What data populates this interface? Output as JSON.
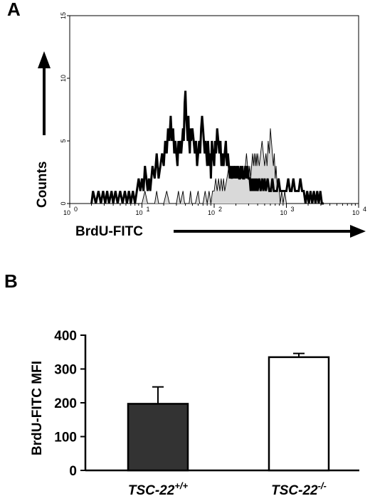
{
  "chart_data": [
    {
      "panel": "A",
      "type": "line",
      "xlabel": "BrdU-FITC",
      "ylabel": "Counts",
      "xscale": "log",
      "xlim": [
        1,
        10000
      ],
      "ylim": [
        0,
        15
      ],
      "xticks": [
        {
          "value": 1,
          "base": "10",
          "exp": "0"
        },
        {
          "value": 10,
          "base": "10",
          "exp": "1"
        },
        {
          "value": 100,
          "base": "10",
          "exp": "2"
        },
        {
          "value": 1000,
          "base": "10",
          "exp": "3"
        },
        {
          "value": 10000,
          "base": "10",
          "exp": "4"
        }
      ],
      "yticks": [
        "0",
        "5",
        "10",
        "15"
      ],
      "series": [
        {
          "style": "thick-black",
          "points": [
            [
              2,
              0
            ],
            [
              2.1,
              1
            ],
            [
              2.3,
              0
            ],
            [
              2.5,
              1
            ],
            [
              2.7,
              0
            ],
            [
              2.9,
              1
            ],
            [
              3.1,
              0
            ],
            [
              3.3,
              1
            ],
            [
              3.5,
              0
            ],
            [
              3.8,
              1
            ],
            [
              4,
              0
            ],
            [
              4.3,
              1
            ],
            [
              4.6,
              0
            ],
            [
              5,
              1
            ],
            [
              5.4,
              0
            ],
            [
              5.8,
              1
            ],
            [
              6.2,
              0
            ],
            [
              6.6,
              1
            ],
            [
              7,
              0
            ],
            [
              7.5,
              1
            ],
            [
              8,
              0
            ],
            [
              8.5,
              1
            ],
            [
              9,
              2
            ],
            [
              9.5,
              1
            ],
            [
              10,
              2
            ],
            [
              10.5,
              1
            ],
            [
              11,
              3
            ],
            [
              11.5,
              2
            ],
            [
              12,
              1
            ],
            [
              12.5,
              2
            ],
            [
              13,
              1
            ],
            [
              14,
              3
            ],
            [
              15,
              2
            ],
            [
              16,
              4
            ],
            [
              17,
              2
            ],
            [
              18,
              3
            ],
            [
              19,
              4
            ],
            [
              20,
              3
            ],
            [
              21,
              5
            ],
            [
              22,
              4
            ],
            [
              23,
              6
            ],
            [
              24,
              5
            ],
            [
              25,
              7
            ],
            [
              26,
              5
            ],
            [
              27,
              6
            ],
            [
              28,
              4
            ],
            [
              29,
              5
            ],
            [
              30,
              4
            ],
            [
              31,
              3
            ],
            [
              32,
              5
            ],
            [
              33,
              4
            ],
            [
              34,
              5
            ],
            [
              35,
              4
            ],
            [
              36,
              5
            ],
            [
              37,
              6
            ],
            [
              38,
              5
            ],
            [
              39,
              8
            ],
            [
              40,
              9
            ],
            [
              41,
              7
            ],
            [
              42,
              6
            ],
            [
              43,
              5
            ],
            [
              44,
              7
            ],
            [
              45,
              5
            ],
            [
              46,
              4
            ],
            [
              47,
              6
            ],
            [
              48,
              5
            ],
            [
              50,
              6
            ],
            [
              52,
              5
            ],
            [
              54,
              4
            ],
            [
              56,
              5
            ],
            [
              58,
              3
            ],
            [
              60,
              4
            ],
            [
              62,
              5
            ],
            [
              64,
              4
            ],
            [
              66,
              6
            ],
            [
              68,
              7
            ],
            [
              70,
              6
            ],
            [
              72,
              5
            ],
            [
              74,
              4
            ],
            [
              76,
              5
            ],
            [
              78,
              4
            ],
            [
              80,
              3
            ],
            [
              82,
              5
            ],
            [
              84,
              4
            ],
            [
              86,
              3
            ],
            [
              88,
              4
            ],
            [
              90,
              2
            ],
            [
              93,
              5
            ],
            [
              96,
              4
            ],
            [
              100,
              3
            ],
            [
              103,
              5
            ],
            [
              106,
              4
            ],
            [
              110,
              6
            ],
            [
              114,
              5
            ],
            [
              118,
              4
            ],
            [
              122,
              5
            ],
            [
              126,
              3
            ],
            [
              130,
              4
            ],
            [
              135,
              3
            ],
            [
              140,
              4
            ],
            [
              145,
              5
            ],
            [
              150,
              3
            ],
            [
              155,
              4
            ],
            [
              160,
              3
            ],
            [
              165,
              2
            ],
            [
              170,
              3
            ],
            [
              175,
              2
            ],
            [
              180,
              3
            ],
            [
              186,
              2
            ],
            [
              192,
              3
            ],
            [
              198,
              2
            ],
            [
              204,
              3
            ],
            [
              210,
              2
            ],
            [
              216,
              3
            ],
            [
              222,
              2
            ],
            [
              228,
              2
            ],
            [
              234,
              3
            ],
            [
              240,
              2
            ],
            [
              246,
              3
            ],
            [
              252,
              2
            ],
            [
              260,
              2
            ],
            [
              270,
              3
            ],
            [
              280,
              2
            ],
            [
              290,
              3
            ],
            [
              300,
              2
            ],
            [
              310,
              2
            ],
            [
              320,
              1
            ],
            [
              330,
              2
            ],
            [
              340,
              1
            ],
            [
              350,
              2
            ],
            [
              360,
              1
            ],
            [
              370,
              2
            ],
            [
              380,
              1
            ],
            [
              390,
              2
            ],
            [
              400,
              1
            ],
            [
              420,
              2
            ],
            [
              440,
              1
            ],
            [
              460,
              2
            ],
            [
              480,
              1
            ],
            [
              500,
              2
            ],
            [
              520,
              1
            ],
            [
              550,
              2
            ],
            [
              580,
              1
            ],
            [
              610,
              1
            ],
            [
              640,
              2
            ],
            [
              670,
              1
            ],
            [
              700,
              1
            ],
            [
              740,
              1
            ],
            [
              780,
              2
            ],
            [
              820,
              1
            ],
            [
              860,
              1
            ],
            [
              900,
              1
            ],
            [
              950,
              1
            ],
            [
              1000,
              1
            ],
            [
              1060,
              2
            ],
            [
              1120,
              1
            ],
            [
              1180,
              1
            ],
            [
              1250,
              2
            ],
            [
              1320,
              1
            ],
            [
              1400,
              1
            ],
            [
              1480,
              1
            ],
            [
              1560,
              2
            ],
            [
              1650,
              1
            ],
            [
              1740,
              1
            ],
            [
              1840,
              0
            ],
            [
              1940,
              1
            ],
            [
              2050,
              0
            ],
            [
              2160,
              1
            ],
            [
              2280,
              0
            ],
            [
              2400,
              1
            ],
            [
              2530,
              0
            ],
            [
              2670,
              1
            ],
            [
              2800,
              0
            ],
            [
              2950,
              1
            ],
            [
              3100,
              0
            ],
            [
              3300,
              0
            ]
          ]
        },
        {
          "style": "thin-filled-gray",
          "points": [
            [
              10,
              0
            ],
            [
              11,
              1
            ],
            [
              12,
              0
            ],
            [
              15,
              0
            ],
            [
              16,
              1
            ],
            [
              17,
              0
            ],
            [
              20,
              0
            ],
            [
              22,
              1
            ],
            [
              24,
              0
            ],
            [
              30,
              0
            ],
            [
              32,
              1
            ],
            [
              34,
              0
            ],
            [
              37,
              1
            ],
            [
              39,
              0
            ],
            [
              45,
              0
            ],
            [
              47,
              1
            ],
            [
              49,
              0
            ],
            [
              55,
              0
            ],
            [
              60,
              1
            ],
            [
              63,
              0
            ],
            [
              70,
              0
            ],
            [
              75,
              1
            ],
            [
              80,
              0
            ],
            [
              85,
              1
            ],
            [
              90,
              0
            ],
            [
              95,
              1
            ],
            [
              100,
              1
            ],
            [
              105,
              2
            ],
            [
              110,
              1
            ],
            [
              115,
              2
            ],
            [
              120,
              1
            ],
            [
              125,
              2
            ],
            [
              130,
              1
            ],
            [
              135,
              2
            ],
            [
              140,
              1
            ],
            [
              150,
              2
            ],
            [
              160,
              3
            ],
            [
              170,
              2
            ],
            [
              180,
              2
            ],
            [
              190,
              3
            ],
            [
              200,
              2
            ],
            [
              210,
              3
            ],
            [
              220,
              2
            ],
            [
              230,
              3
            ],
            [
              240,
              2
            ],
            [
              250,
              3
            ],
            [
              260,
              2
            ],
            [
              270,
              3
            ],
            [
              280,
              4
            ],
            [
              290,
              3
            ],
            [
              300,
              2
            ],
            [
              310,
              3
            ],
            [
              320,
              2
            ],
            [
              330,
              3
            ],
            [
              340,
              4
            ],
            [
              350,
              3
            ],
            [
              360,
              4
            ],
            [
              370,
              3
            ],
            [
              380,
              4
            ],
            [
              390,
              3
            ],
            [
              400,
              4
            ],
            [
              420,
              3
            ],
            [
              440,
              4
            ],
            [
              460,
              5
            ],
            [
              480,
              4
            ],
            [
              500,
              3
            ],
            [
              520,
              4
            ],
            [
              540,
              3
            ],
            [
              560,
              5
            ],
            [
              580,
              4
            ],
            [
              600,
              6
            ],
            [
              620,
              5
            ],
            [
              640,
              4
            ],
            [
              660,
              3
            ],
            [
              680,
              4
            ],
            [
              700,
              2
            ],
            [
              720,
              3
            ],
            [
              750,
              1
            ],
            [
              780,
              2
            ],
            [
              820,
              0
            ],
            [
              860,
              1
            ],
            [
              900,
              0
            ],
            [
              950,
              1
            ],
            [
              1000,
              0
            ],
            [
              1100,
              0
            ]
          ]
        }
      ]
    },
    {
      "panel": "B",
      "type": "bar",
      "ylabel": "BrdU-FITC MFI",
      "ylim": [
        0,
        400
      ],
      "yticks": [
        "0",
        "100",
        "200",
        "300",
        "400"
      ],
      "categories": [
        {
          "base": "TSC-22",
          "sup": "+/+"
        },
        {
          "base": "TSC-22",
          "sup": "-/-"
        }
      ],
      "values": [
        197,
        335
      ],
      "errors": [
        50,
        11
      ],
      "fills": [
        "#333333",
        "#ffffff"
      ]
    }
  ]
}
